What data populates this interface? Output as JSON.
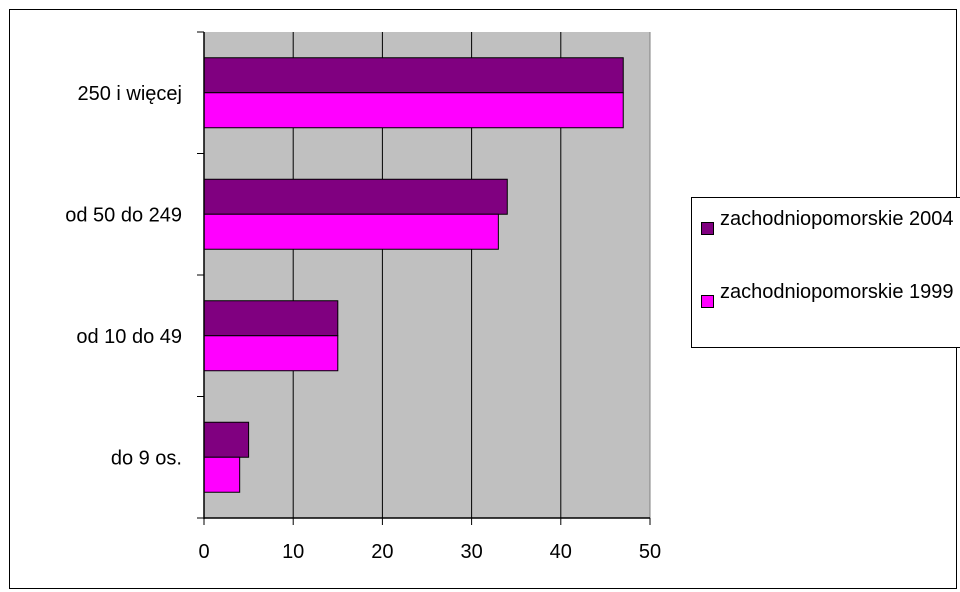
{
  "chart_data": {
    "type": "bar",
    "orientation": "horizontal",
    "categories": [
      "250 i więcej",
      "od 50 do 249",
      "od 10 do 49",
      "do 9 os."
    ],
    "series": [
      {
        "name": "zachodniopomorskie 2004",
        "values": [
          47,
          34,
          15,
          5
        ],
        "color": "#800080"
      },
      {
        "name": "zachodniopomorskie 1999",
        "values": [
          47,
          33,
          15,
          4
        ],
        "color": "#ff00ff"
      }
    ],
    "xlim": [
      0,
      50
    ],
    "xticks": [
      0,
      10,
      20,
      30,
      40,
      50
    ],
    "grid": "vertical",
    "plot_background": "#c0c0c0",
    "legend_position": "right"
  }
}
